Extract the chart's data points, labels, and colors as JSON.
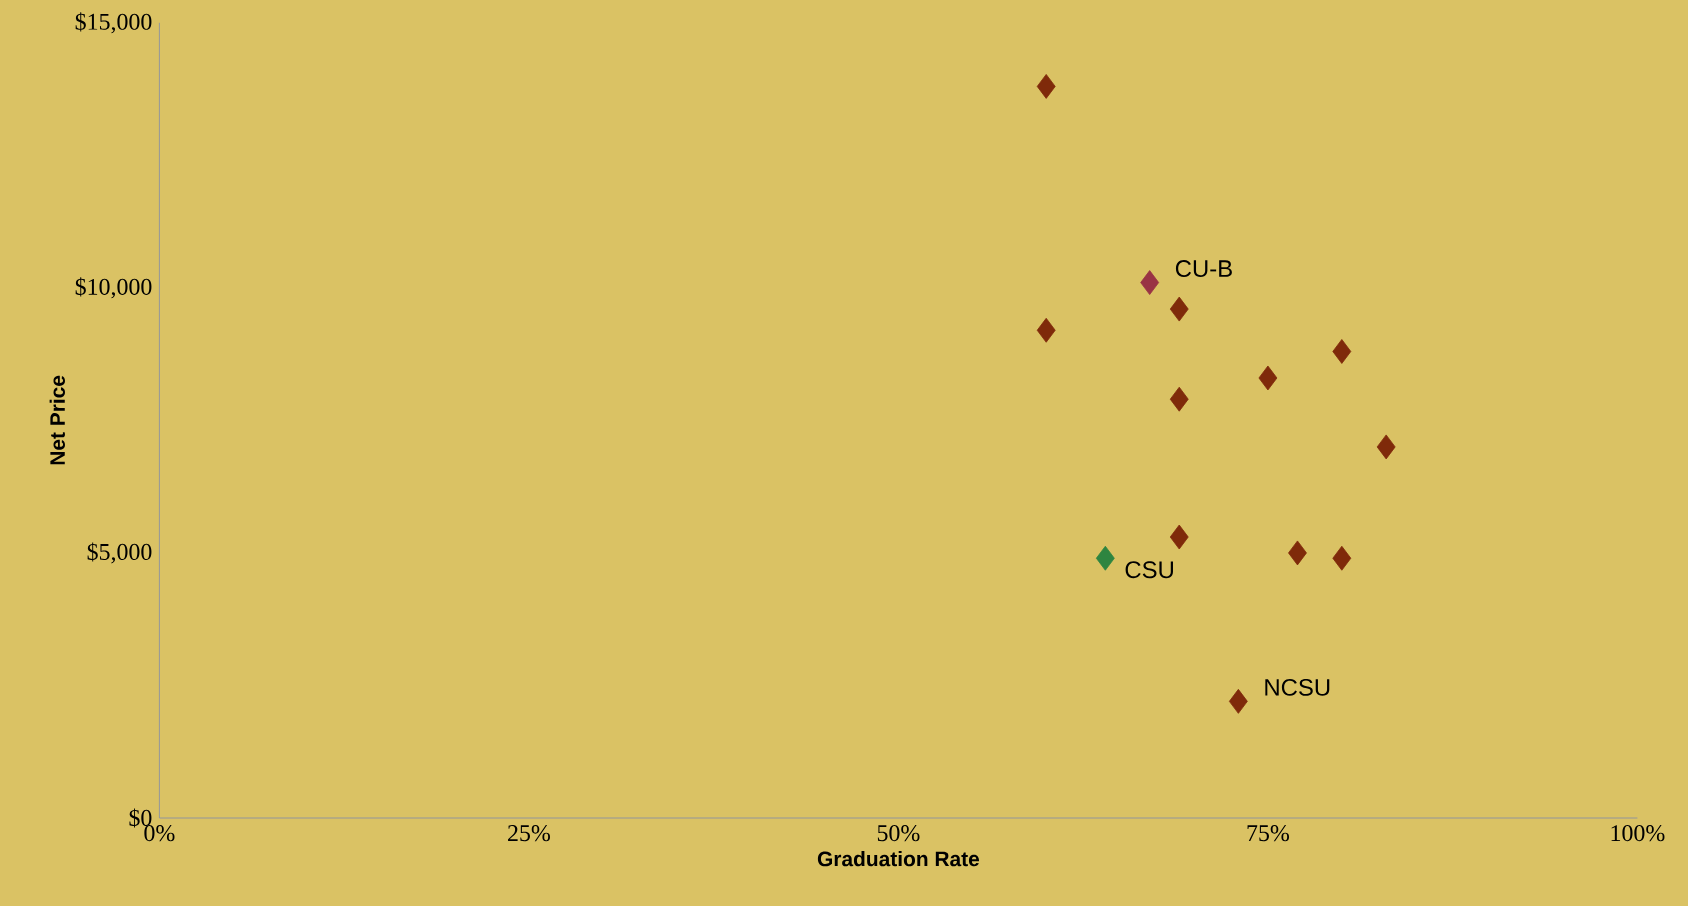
{
  "chart_data": {
    "type": "scatter",
    "xlabel": "Graduation Rate",
    "ylabel": "Net Price",
    "marker": "diamond",
    "xlim": [
      0,
      100
    ],
    "ylim": [
      0,
      15000
    ],
    "xticks": [
      {
        "value": 0,
        "label": "0%"
      },
      {
        "value": 25,
        "label": "25%"
      },
      {
        "value": 50,
        "label": "50%"
      },
      {
        "value": 75,
        "label": "75%"
      },
      {
        "value": 100,
        "label": "100%"
      }
    ],
    "yticks": [
      {
        "value": 0,
        "label": "$0"
      },
      {
        "value": 5000,
        "label": "$5,000"
      },
      {
        "value": 10000,
        "label": "$10,000"
      },
      {
        "value": 15000,
        "label": "$15,000"
      }
    ],
    "series": [
      {
        "color": "#7f2a0a",
        "x": [
          60,
          69,
          60,
          80,
          75,
          69,
          83,
          69,
          77,
          80,
          73
        ],
        "values": [
          13800,
          9600,
          9200,
          8800,
          8300,
          7900,
          7000,
          5300,
          5000,
          4900,
          2200
        ]
      },
      {
        "color": "#993344",
        "x": [
          67
        ],
        "values": [
          10100
        ]
      },
      {
        "color": "#2e8540",
        "x": [
          64
        ],
        "values": [
          4900
        ]
      }
    ],
    "annotations": [
      {
        "text": "CU-B",
        "x": 67,
        "y": 10100
      },
      {
        "text": "CSU",
        "x": 64,
        "y": 4900
      },
      {
        "text": "NCSU",
        "x": 73,
        "y": 2200
      }
    ]
  }
}
